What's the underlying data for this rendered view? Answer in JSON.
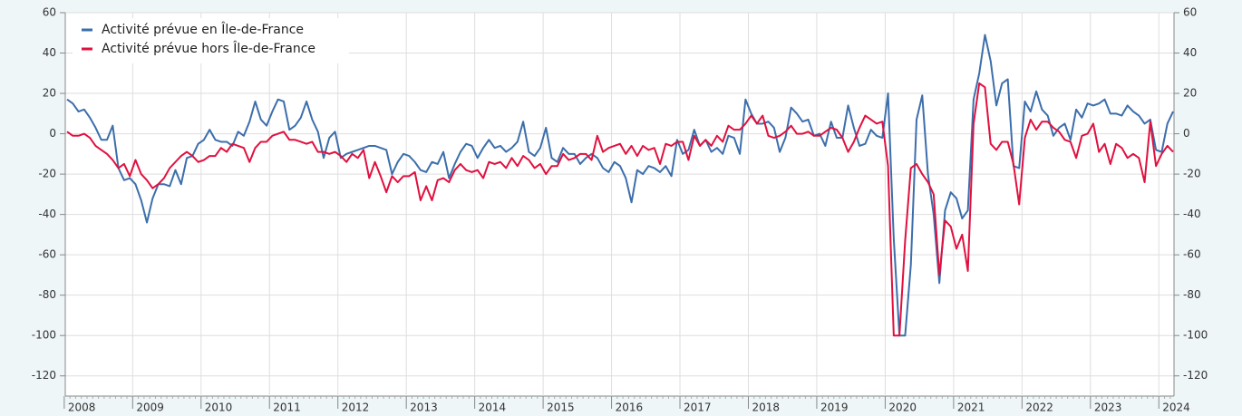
{
  "chart_data": {
    "type": "line",
    "categories": [
      "2008",
      null,
      null,
      null,
      null,
      null,
      null,
      null,
      null,
      null,
      null,
      null,
      "2009",
      null,
      null,
      null,
      null,
      null,
      null,
      null,
      null,
      null,
      null,
      null,
      "2010",
      null,
      null,
      null,
      null,
      null,
      null,
      null,
      null,
      null,
      null,
      null,
      "2011",
      null,
      null,
      null,
      null,
      null,
      null,
      null,
      null,
      null,
      null,
      null,
      "2012",
      null,
      null,
      null,
      null,
      null,
      null,
      null,
      null,
      null,
      null,
      null,
      "2013",
      null,
      null,
      null,
      null,
      null,
      null,
      null,
      null,
      null,
      null,
      null,
      "2014",
      null,
      null,
      null,
      null,
      null,
      null,
      null,
      null,
      null,
      null,
      null,
      "2015",
      null,
      null,
      null,
      null,
      null,
      null,
      null,
      null,
      null,
      null,
      null,
      "2016",
      null,
      null,
      null,
      null,
      null,
      null,
      null,
      null,
      null,
      null,
      null,
      "2017",
      null,
      null,
      null,
      null,
      null,
      null,
      null,
      null,
      null,
      null,
      null,
      "2018",
      null,
      null,
      null,
      null,
      null,
      null,
      null,
      null,
      null,
      null,
      null,
      "2019",
      null,
      null,
      null,
      null,
      null,
      null,
      null,
      null,
      null,
      null,
      null,
      "2020",
      null,
      null,
      null,
      null,
      null,
      null,
      null,
      null,
      null,
      null,
      null,
      "2021",
      null,
      null,
      null,
      null,
      null,
      null,
      null,
      null,
      null,
      null,
      null,
      "2022",
      null,
      null,
      null,
      null,
      null,
      null,
      null,
      null,
      null,
      null,
      null,
      "2023",
      null,
      null,
      null,
      null,
      null,
      null,
      null,
      null,
      null,
      null,
      null,
      "2024",
      null,
      null
    ],
    "series": [
      {
        "name": "Activité prévue en Île-de-France",
        "color": "#3c6eab",
        "values": [
          17,
          15,
          11,
          12,
          8,
          3,
          -3,
          -3,
          4,
          -17,
          -23,
          -22,
          -25,
          -33,
          -44,
          -32,
          -25,
          -25,
          -26,
          -18,
          -25,
          -12,
          -11,
          -5,
          -3,
          2,
          -3,
          -4,
          -4,
          -6,
          1,
          -1,
          6,
          16,
          7,
          4,
          11,
          17,
          16,
          2,
          4,
          8,
          16,
          7,
          1,
          -12,
          -2,
          1,
          -12,
          -10,
          -9,
          -8,
          -7,
          -6,
          -6,
          -7,
          -8,
          -20,
          -14,
          -10,
          -11,
          -14,
          -18,
          -19,
          -14,
          -15,
          -9,
          -22,
          -15,
          -9,
          -5,
          -6,
          -12,
          -7,
          -3,
          -7,
          -6,
          -9,
          -7,
          -4,
          6,
          -9,
          -11,
          -7,
          3,
          -12,
          -14,
          -7,
          -10,
          -10,
          -15,
          -12,
          -10,
          -12,
          -17,
          -19,
          -14,
          -16,
          -22,
          -34,
          -18,
          -20,
          -16,
          -17,
          -19,
          -16,
          -21,
          -3,
          -10,
          -8,
          2,
          -6,
          -3,
          -9,
          -7,
          -10,
          -1,
          -2,
          -10,
          17,
          10,
          5,
          5,
          6,
          3,
          -9,
          -2,
          13,
          10,
          6,
          7,
          -1,
          0,
          -6,
          6,
          -2,
          -2,
          14,
          3,
          -6,
          -5,
          2,
          -1,
          -2,
          20,
          -52,
          -100,
          -100,
          -65,
          7,
          19,
          -20,
          -40,
          -74,
          -38,
          -29,
          -32,
          -42,
          -38,
          17,
          30,
          49,
          36,
          14,
          25,
          27,
          -16,
          -17,
          16,
          11,
          21,
          12,
          9,
          -1,
          3,
          5,
          -3,
          12,
          8,
          15,
          14,
          15,
          17,
          10,
          10,
          9,
          14,
          11,
          9,
          5,
          7,
          -8,
          -9,
          5,
          11
        ]
      },
      {
        "name": "Activité prévue hors Île-de-France",
        "color": "#e0103f",
        "values": [
          1,
          -1,
          -1,
          0,
          -2,
          -6,
          -8,
          -10,
          -13,
          -17,
          -15,
          -21,
          -13,
          -20,
          -23,
          -27,
          -25,
          -22,
          -17,
          -14,
          -11,
          -9,
          -11,
          -14,
          -13,
          -11,
          -11,
          -7,
          -9,
          -5,
          -6,
          -7,
          -14,
          -7,
          -4,
          -4,
          -1,
          0,
          1,
          -3,
          -3,
          -4,
          -5,
          -4,
          -9,
          -9,
          -10,
          -9,
          -11,
          -14,
          -10,
          -12,
          -8,
          -22,
          -14,
          -21,
          -29,
          -21,
          -24,
          -21,
          -21,
          -19,
          -33,
          -26,
          -33,
          -23,
          -22,
          -24,
          -18,
          -15,
          -18,
          -19,
          -18,
          -22,
          -14,
          -15,
          -14,
          -17,
          -12,
          -16,
          -11,
          -13,
          -17,
          -15,
          -20,
          -16,
          -16,
          -10,
          -13,
          -12,
          -10,
          -10,
          -13,
          -1,
          -9,
          -7,
          -6,
          -5,
          -10,
          -6,
          -11,
          -6,
          -8,
          -7,
          -15,
          -5,
          -6,
          -4,
          -4,
          -13,
          -1,
          -6,
          -3,
          -6,
          -1,
          -4,
          4,
          2,
          2,
          5,
          9,
          5,
          9,
          -1,
          -2,
          -1,
          1,
          4,
          0,
          0,
          1,
          -1,
          -1,
          1,
          3,
          2,
          -2,
          -9,
          -4,
          3,
          9,
          7,
          5,
          6,
          -16,
          -100,
          -100,
          -53,
          -17,
          -15,
          -20,
          -24,
          -30,
          -70,
          -43,
          -46,
          -57,
          -50,
          -68,
          5,
          25,
          23,
          -5,
          -8,
          -4,
          -4,
          -15,
          -35,
          -2,
          7,
          2,
          6,
          6,
          3,
          1,
          -3,
          -4,
          -12,
          -1,
          0,
          5,
          -9,
          -5,
          -15,
          -5,
          -7,
          -12,
          -10,
          -12,
          -24,
          6,
          -16,
          -10,
          -6,
          -9
        ]
      }
    ],
    "ylim": [
      -130,
      60
    ],
    "yticks": [
      -120,
      -100,
      -80,
      -60,
      -40,
      -20,
      0,
      20,
      40,
      60
    ],
    "grid": true,
    "legend": "top-left"
  }
}
